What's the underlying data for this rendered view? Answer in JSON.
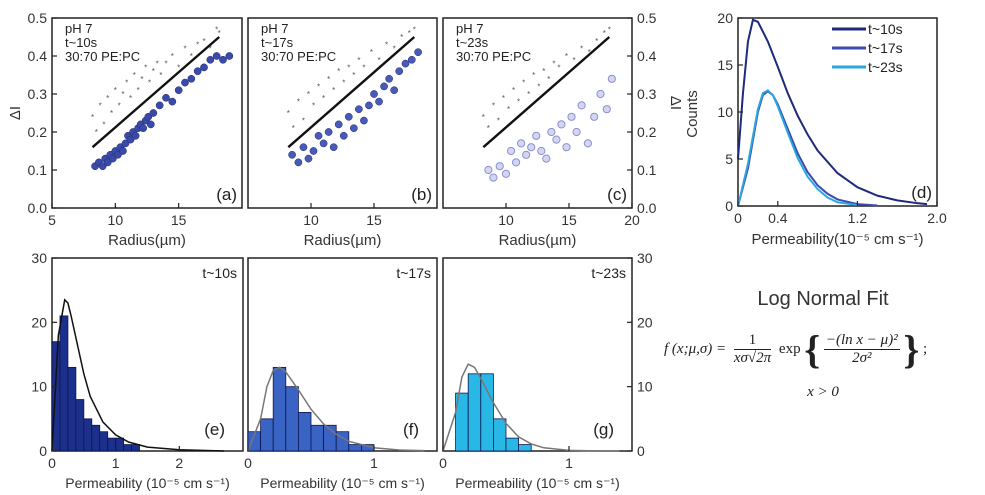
{
  "chart_data": [
    {
      "id": "a",
      "type": "scatter",
      "panel_label": "(a)",
      "annotations": [
        "pH 7",
        "t~10s",
        "30:70 PE:PC"
      ],
      "xlabel": "Radius(µm)",
      "ylabel": "ΔI",
      "xlim": [
        5,
        20
      ],
      "ylim": [
        0.0,
        0.5
      ],
      "xticks": [
        "5",
        "10",
        "15"
      ],
      "yticks": [
        "0.0",
        "0.1",
        "0.2",
        "0.3",
        "0.4",
        "0.5"
      ],
      "fit_line": {
        "x": [
          8.2,
          18.2
        ],
        "y": [
          0.16,
          0.45
        ]
      },
      "series": [
        {
          "marker": "filled",
          "color": "#3a4aa8",
          "x": [
            8.4,
            8.7,
            9.0,
            9.2,
            9.4,
            9.6,
            9.8,
            10.0,
            10.2,
            10.4,
            10.6,
            10.8,
            11.0,
            11.2,
            11.4,
            11.6,
            11.8,
            12.0,
            12.2,
            12.4,
            12.6,
            12.8,
            13.0,
            13.5,
            14.0,
            14.5,
            15.0,
            15.5,
            16.0,
            16.5,
            17.0,
            17.5,
            18.0,
            18.5,
            19.0
          ],
          "y": [
            0.11,
            0.12,
            0.11,
            0.13,
            0.12,
            0.14,
            0.13,
            0.15,
            0.14,
            0.16,
            0.15,
            0.17,
            0.19,
            0.18,
            0.2,
            0.19,
            0.21,
            0.22,
            0.21,
            0.23,
            0.24,
            0.22,
            0.25,
            0.27,
            0.29,
            0.28,
            0.31,
            0.33,
            0.34,
            0.36,
            0.37,
            0.39,
            0.4,
            0.39,
            0.4
          ]
        },
        {
          "marker": "cross",
          "color": "#555555",
          "x": [
            8.2,
            8.5,
            8.8,
            9.1,
            9.4,
            9.7,
            10.0,
            10.3,
            10.6,
            10.9,
            11.2,
            11.5,
            11.8,
            12.1,
            12.4,
            12.7,
            13.0,
            13.3,
            13.6,
            14.0,
            14.5,
            15.0,
            15.5,
            16.0,
            16.5,
            17.0,
            17.5,
            18.0,
            18.2
          ],
          "y": [
            0.24,
            0.2,
            0.27,
            0.22,
            0.29,
            0.25,
            0.31,
            0.27,
            0.3,
            0.33,
            0.29,
            0.35,
            0.31,
            0.34,
            0.37,
            0.33,
            0.36,
            0.38,
            0.35,
            0.38,
            0.4,
            0.37,
            0.42,
            0.4,
            0.43,
            0.44,
            0.42,
            0.47,
            0.46
          ]
        }
      ]
    },
    {
      "id": "b",
      "type": "scatter",
      "panel_label": "(b)",
      "annotations": [
        "pH 7",
        "t~17s",
        "30:70 PE:PC"
      ],
      "xlabel": "Radius(µm)",
      "xlim": [
        5,
        20
      ],
      "ylim": [
        0.0,
        0.5
      ],
      "xticks": [
        "10",
        "15"
      ],
      "fit_line": {
        "x": [
          8.2,
          18.2
        ],
        "y": [
          0.16,
          0.45
        ]
      },
      "series": [
        {
          "marker": "filled",
          "color": "#4a5ab8",
          "x": [
            8.5,
            9.0,
            9.4,
            9.8,
            10.2,
            10.6,
            11.0,
            11.4,
            11.8,
            12.2,
            12.6,
            13.0,
            13.4,
            13.8,
            14.2,
            14.6,
            15.0,
            15.4,
            15.8,
            16.2,
            16.6,
            17.0,
            17.5,
            18.0,
            18.5
          ],
          "y": [
            0.14,
            0.12,
            0.16,
            0.13,
            0.15,
            0.19,
            0.17,
            0.2,
            0.16,
            0.22,
            0.19,
            0.24,
            0.21,
            0.26,
            0.23,
            0.27,
            0.3,
            0.28,
            0.32,
            0.34,
            0.31,
            0.36,
            0.38,
            0.39,
            0.41
          ]
        },
        {
          "marker": "cross",
          "color": "#555555",
          "x": [
            8.2,
            8.6,
            9.0,
            9.4,
            9.8,
            10.2,
            10.6,
            11.0,
            11.4,
            11.8,
            12.2,
            12.6,
            13.0,
            13.4,
            13.8,
            14.2,
            14.8,
            15.4,
            16.0,
            16.6,
            17.2,
            17.8,
            18.2
          ],
          "y": [
            0.25,
            0.21,
            0.28,
            0.23,
            0.3,
            0.27,
            0.32,
            0.29,
            0.34,
            0.31,
            0.36,
            0.33,
            0.37,
            0.35,
            0.39,
            0.37,
            0.41,
            0.39,
            0.43,
            0.42,
            0.45,
            0.46,
            0.47
          ]
        }
      ]
    },
    {
      "id": "c",
      "type": "scatter",
      "panel_label": "(c)",
      "annotations": [
        "pH 7",
        "t~23s",
        "30:70 PE:PC"
      ],
      "xlabel": "Radius(µm)",
      "ylabel": "ΔI",
      "xlim": [
        5,
        20
      ],
      "ylim": [
        0.0,
        0.5
      ],
      "xticks": [
        "10",
        "15",
        "20"
      ],
      "yticks": [
        "0.0",
        "0.1",
        "0.2",
        "0.3",
        "0.4",
        "0.5"
      ],
      "fit_line": {
        "x": [
          8.2,
          18.2
        ],
        "y": [
          0.16,
          0.45
        ]
      },
      "series": [
        {
          "marker": "open",
          "color": "#8c8fd0",
          "x": [
            8.6,
            9.0,
            9.5,
            10.0,
            10.4,
            10.8,
            11.2,
            11.6,
            12.0,
            12.4,
            12.8,
            13.2,
            13.6,
            14.0,
            14.4,
            14.8,
            15.2,
            15.6,
            16.0,
            16.5,
            17.0,
            17.5,
            18.0,
            18.4
          ],
          "y": [
            0.1,
            0.08,
            0.11,
            0.09,
            0.15,
            0.12,
            0.17,
            0.14,
            0.16,
            0.19,
            0.15,
            0.13,
            0.2,
            0.18,
            0.22,
            0.16,
            0.24,
            0.2,
            0.27,
            0.17,
            0.24,
            0.3,
            0.26,
            0.34
          ]
        },
        {
          "marker": "cross",
          "color": "#555555",
          "x": [
            8.2,
            8.6,
            9.0,
            9.4,
            9.8,
            10.2,
            10.6,
            11.0,
            11.4,
            11.8,
            12.2,
            12.6,
            13.0,
            13.4,
            13.8,
            14.2,
            14.8,
            15.4,
            16.0,
            16.6,
            17.2,
            17.8,
            18.2
          ],
          "y": [
            0.24,
            0.21,
            0.27,
            0.23,
            0.29,
            0.26,
            0.31,
            0.28,
            0.33,
            0.3,
            0.35,
            0.32,
            0.36,
            0.34,
            0.38,
            0.37,
            0.4,
            0.39,
            0.42,
            0.41,
            0.44,
            0.46,
            0.47
          ]
        }
      ]
    },
    {
      "id": "d",
      "type": "line",
      "panel_label": "(d)",
      "xlabel": "Permeability(10⁻⁵ cm s⁻¹)",
      "ylabel": "Counts",
      "xlim": [
        0,
        2.0
      ],
      "ylim": [
        0,
        20
      ],
      "xticks": [
        "0",
        "0.4",
        "1.2",
        "2.0"
      ],
      "yticks": [
        "0",
        "5",
        "10",
        "15",
        "20"
      ],
      "legend_position": "top-right",
      "series": [
        {
          "name": "t~10s",
          "color": "#1f2a7a",
          "x": [
            0.0,
            0.05,
            0.1,
            0.15,
            0.2,
            0.3,
            0.4,
            0.5,
            0.6,
            0.7,
            0.8,
            1.0,
            1.2,
            1.4,
            1.6,
            1.8,
            1.9
          ],
          "y": [
            5.0,
            12.0,
            17.5,
            19.8,
            19.6,
            17.5,
            14.8,
            12.0,
            9.6,
            7.6,
            5.9,
            3.5,
            2.0,
            1.1,
            0.6,
            0.3,
            0.2
          ]
        },
        {
          "name": "t~17s",
          "color": "#3a4ab0",
          "x": [
            0.0,
            0.1,
            0.2,
            0.25,
            0.3,
            0.35,
            0.4,
            0.5,
            0.6,
            0.7,
            0.8,
            0.9,
            1.0,
            1.2,
            1.4
          ],
          "y": [
            0.0,
            4.0,
            10.0,
            11.8,
            12.2,
            11.8,
            10.8,
            8.2,
            5.6,
            3.6,
            2.2,
            1.3,
            0.7,
            0.2,
            0.05
          ]
        },
        {
          "name": "t~23s",
          "color": "#2aa7e0",
          "x": [
            0.0,
            0.1,
            0.2,
            0.25,
            0.3,
            0.35,
            0.4,
            0.5,
            0.6,
            0.7,
            0.8,
            0.9,
            1.0,
            1.2
          ],
          "y": [
            0.0,
            4.5,
            10.3,
            12.0,
            12.3,
            11.8,
            10.6,
            7.8,
            5.1,
            3.1,
            1.8,
            0.9,
            0.4,
            0.1
          ]
        }
      ]
    },
    {
      "id": "e",
      "type": "bar",
      "panel_label": "(e)",
      "annotation": "t~10s",
      "xlabel": "Permeability (10⁻⁵ cm s⁻¹)",
      "xlim": [
        0,
        3
      ],
      "ylim": [
        0,
        30
      ],
      "xticks": [
        "0",
        "1",
        "2"
      ],
      "yticks": [
        "0",
        "10",
        "20",
        "30"
      ],
      "bar_color": "#1c2f8a",
      "bin_width": 0.125,
      "bin_starts": [
        0.0,
        0.125,
        0.25,
        0.375,
        0.5,
        0.625,
        0.75,
        0.875,
        1.0,
        1.125,
        1.25
      ],
      "values": [
        17,
        21,
        13,
        8,
        5,
        4,
        3,
        2,
        2,
        1,
        1
      ],
      "fit_curve": {
        "x": [
          0.0,
          0.1,
          0.2,
          0.25,
          0.3,
          0.4,
          0.5,
          0.6,
          0.8,
          1.0,
          1.2,
          1.5,
          2.0,
          2.5,
          2.7
        ],
        "y": [
          0,
          18,
          23.5,
          23,
          21,
          16.5,
          12,
          8.5,
          4.5,
          2.5,
          1.4,
          0.6,
          0.2,
          0.05,
          0
        ]
      }
    },
    {
      "id": "f",
      "type": "bar",
      "panel_label": "(f)",
      "annotation": "t~17s",
      "xlabel": "Permeability (10⁻⁵ cm s⁻¹)",
      "xlim": [
        0,
        1.5
      ],
      "ylim": [
        0,
        30
      ],
      "xticks": [
        "0",
        "1"
      ],
      "bar_color": "#3a64c4",
      "bin_width": 0.1,
      "bin_starts": [
        0.0,
        0.1,
        0.2,
        0.3,
        0.4,
        0.5,
        0.6,
        0.7,
        0.8,
        0.9
      ],
      "values": [
        3,
        5,
        13,
        10,
        6,
        4,
        4,
        3,
        1,
        1
      ],
      "fit_curve": {
        "x": [
          0.0,
          0.1,
          0.15,
          0.2,
          0.25,
          0.3,
          0.4,
          0.5,
          0.6,
          0.7,
          0.8,
          1.0,
          1.2,
          1.4
        ],
        "y": [
          0,
          5,
          10,
          12.5,
          13,
          12.3,
          9.5,
          6.5,
          4.2,
          2.6,
          1.5,
          0.5,
          0.15,
          0.05
        ]
      }
    },
    {
      "id": "g",
      "type": "bar",
      "panel_label": "(g)",
      "annotation": "t~23s",
      "xlabel": "Permeability (10⁻⁵ cm s⁻¹)",
      "xlim": [
        0,
        1.5
      ],
      "ylim": [
        0,
        30
      ],
      "xticks": [
        "0",
        "1"
      ],
      "yticks": [
        "0",
        "10",
        "20",
        "30"
      ],
      "bar_color": "#29b8e6",
      "bin_width": 0.1,
      "bin_starts": [
        0.1,
        0.2,
        0.3,
        0.4,
        0.5,
        0.6
      ],
      "values": [
        9,
        12,
        12,
        5,
        2,
        1
      ],
      "fit_curve": {
        "x": [
          0.0,
          0.1,
          0.15,
          0.2,
          0.25,
          0.3,
          0.4,
          0.5,
          0.6,
          0.7,
          0.8,
          1.0,
          1.2,
          1.4
        ],
        "y": [
          0,
          6,
          11.5,
          13.5,
          13,
          11.3,
          7.5,
          4.3,
          2.2,
          1.1,
          0.5,
          0.1,
          0.02,
          0
        ]
      }
    }
  ],
  "formula": {
    "title": "Log Normal Fit",
    "lhs": "f (x;μ,σ) =",
    "frac_num": "1",
    "frac_den": "xσ√2π",
    "exp": "exp",
    "exp_num": "−(ln x − μ)²",
    "exp_den": "2σ²",
    "tail": ";",
    "condition": "x > 0"
  }
}
